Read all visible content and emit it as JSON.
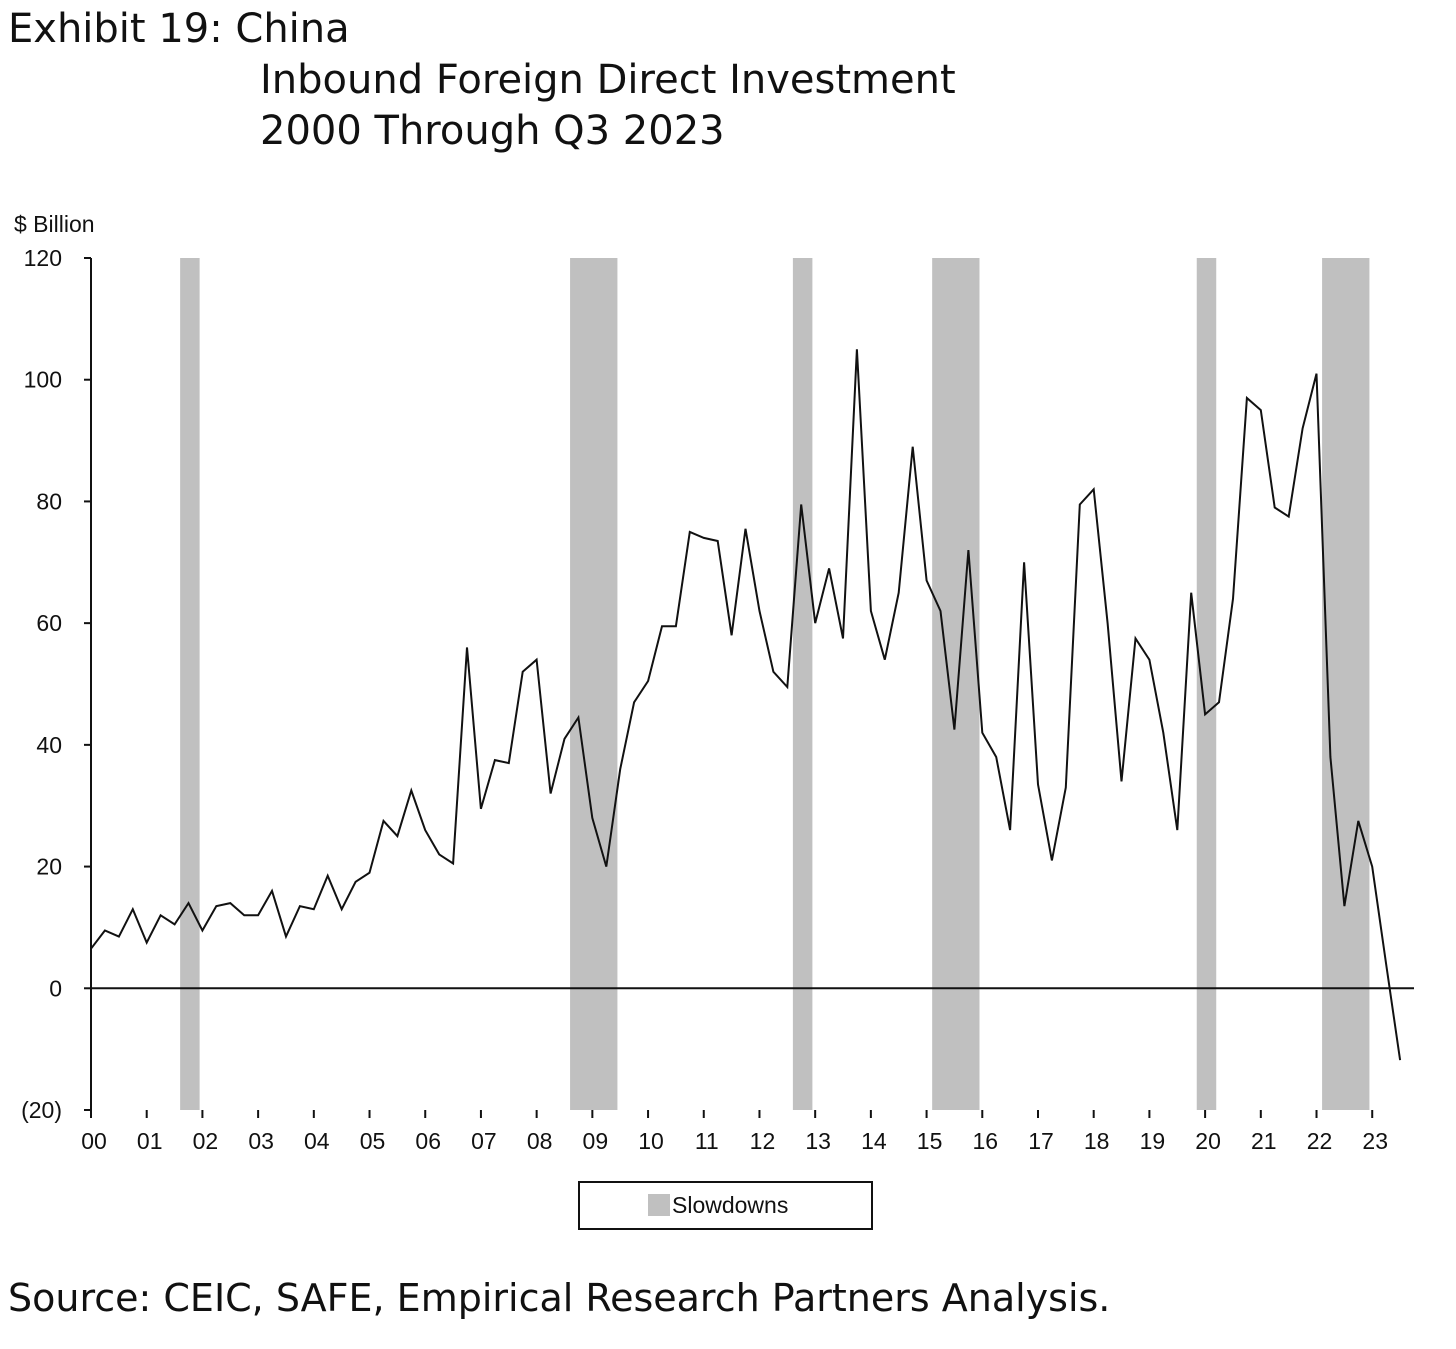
{
  "exhibit": "Exhibit 19: China",
  "subtitle_line1": "Inbound Foreign Direct Investment",
  "subtitle_line2": "2000 Through Q3 2023",
  "source": "Source: CEIC, SAFE, Empirical Research Partners Analysis.",
  "chart_data": {
    "type": "line",
    "ylabel": "$ Billion",
    "ylim": [
      -20,
      120
    ],
    "yticks": [
      {
        "value": 120,
        "label": "120"
      },
      {
        "value": 100,
        "label": "100"
      },
      {
        "value": 80,
        "label": "80"
      },
      {
        "value": 60,
        "label": "60"
      },
      {
        "value": 40,
        "label": "40"
      },
      {
        "value": 20,
        "label": "20"
      },
      {
        "value": 0,
        "label": "0"
      },
      {
        "value": -20,
        "label": "(20)"
      }
    ],
    "xlim": [
      2000.0,
      2023.75
    ],
    "xticks": [
      {
        "year": 2000,
        "label": "00"
      },
      {
        "year": 2001,
        "label": "01"
      },
      {
        "year": 2002,
        "label": "02"
      },
      {
        "year": 2003,
        "label": "03"
      },
      {
        "year": 2004,
        "label": "04"
      },
      {
        "year": 2005,
        "label": "05"
      },
      {
        "year": 2006,
        "label": "06"
      },
      {
        "year": 2007,
        "label": "07"
      },
      {
        "year": 2008,
        "label": "08"
      },
      {
        "year": 2009,
        "label": "09"
      },
      {
        "year": 2010,
        "label": "10"
      },
      {
        "year": 2011,
        "label": "11"
      },
      {
        "year": 2012,
        "label": "12"
      },
      {
        "year": 2013,
        "label": "13"
      },
      {
        "year": 2014,
        "label": "14"
      },
      {
        "year": 2015,
        "label": "15"
      },
      {
        "year": 2016,
        "label": "16"
      },
      {
        "year": 2017,
        "label": "17"
      },
      {
        "year": 2018,
        "label": "18"
      },
      {
        "year": 2019,
        "label": "19"
      },
      {
        "year": 2020,
        "label": "20"
      },
      {
        "year": 2021,
        "label": "21"
      },
      {
        "year": 2022,
        "label": "22"
      },
      {
        "year": 2023,
        "label": "23"
      }
    ],
    "legend": {
      "label": "Slowdowns",
      "placement": "bottom-center"
    },
    "slowdowns": [
      {
        "start": 2001.6,
        "end": 2001.95
      },
      {
        "start": 2008.6,
        "end": 2009.45
      },
      {
        "start": 2012.6,
        "end": 2012.95
      },
      {
        "start": 2015.1,
        "end": 2015.95
      },
      {
        "start": 2019.85,
        "end": 2020.2
      },
      {
        "start": 2022.1,
        "end": 2022.95
      }
    ],
    "series": [
      {
        "color": "#111111",
        "points": [
          {
            "x": 2000.0,
            "y": 6.5
          },
          {
            "x": 2000.25,
            "y": 9.5
          },
          {
            "x": 2000.5,
            "y": 8.5
          },
          {
            "x": 2000.75,
            "y": 13
          },
          {
            "x": 2001.0,
            "y": 7.5
          },
          {
            "x": 2001.25,
            "y": 12
          },
          {
            "x": 2001.5,
            "y": 10.5
          },
          {
            "x": 2001.75,
            "y": 14
          },
          {
            "x": 2002.0,
            "y": 9.5
          },
          {
            "x": 2002.25,
            "y": 13.5
          },
          {
            "x": 2002.5,
            "y": 14
          },
          {
            "x": 2002.75,
            "y": 12
          },
          {
            "x": 2003.0,
            "y": 12
          },
          {
            "x": 2003.25,
            "y": 16
          },
          {
            "x": 2003.5,
            "y": 8.5
          },
          {
            "x": 2003.75,
            "y": 13.5
          },
          {
            "x": 2004.0,
            "y": 13
          },
          {
            "x": 2004.25,
            "y": 18.5
          },
          {
            "x": 2004.5,
            "y": 13
          },
          {
            "x": 2004.75,
            "y": 17.5
          },
          {
            "x": 2005.0,
            "y": 19
          },
          {
            "x": 2005.25,
            "y": 27.5
          },
          {
            "x": 2005.5,
            "y": 25
          },
          {
            "x": 2005.75,
            "y": 32.5
          },
          {
            "x": 2006.0,
            "y": 26
          },
          {
            "x": 2006.25,
            "y": 22
          },
          {
            "x": 2006.5,
            "y": 20.5
          },
          {
            "x": 2006.75,
            "y": 56
          },
          {
            "x": 2007.0,
            "y": 29.5
          },
          {
            "x": 2007.25,
            "y": 37.5
          },
          {
            "x": 2007.5,
            "y": 37
          },
          {
            "x": 2007.75,
            "y": 52
          },
          {
            "x": 2008.0,
            "y": 54
          },
          {
            "x": 2008.25,
            "y": 32
          },
          {
            "x": 2008.5,
            "y": 41
          },
          {
            "x": 2008.75,
            "y": 44.5
          },
          {
            "x": 2009.0,
            "y": 28
          },
          {
            "x": 2009.25,
            "y": 20
          },
          {
            "x": 2009.5,
            "y": 36
          },
          {
            "x": 2009.75,
            "y": 47
          },
          {
            "x": 2010.0,
            "y": 50.5
          },
          {
            "x": 2010.25,
            "y": 59.5
          },
          {
            "x": 2010.5,
            "y": 59.5
          },
          {
            "x": 2010.75,
            "y": 75
          },
          {
            "x": 2011.0,
            "y": 74
          },
          {
            "x": 2011.25,
            "y": 73.5
          },
          {
            "x": 2011.5,
            "y": 58
          },
          {
            "x": 2011.75,
            "y": 75.5
          },
          {
            "x": 2012.0,
            "y": 62
          },
          {
            "x": 2012.25,
            "y": 52
          },
          {
            "x": 2012.5,
            "y": 49.5
          },
          {
            "x": 2012.75,
            "y": 79.5
          },
          {
            "x": 2013.0,
            "y": 60
          },
          {
            "x": 2013.25,
            "y": 69
          },
          {
            "x": 2013.5,
            "y": 57.5
          },
          {
            "x": 2013.75,
            "y": 105
          },
          {
            "x": 2014.0,
            "y": 62
          },
          {
            "x": 2014.25,
            "y": 54
          },
          {
            "x": 2014.5,
            "y": 65
          },
          {
            "x": 2014.75,
            "y": 89
          },
          {
            "x": 2015.0,
            "y": 67
          },
          {
            "x": 2015.25,
            "y": 62
          },
          {
            "x": 2015.5,
            "y": 42.5
          },
          {
            "x": 2015.75,
            "y": 72
          },
          {
            "x": 2016.0,
            "y": 42
          },
          {
            "x": 2016.25,
            "y": 38
          },
          {
            "x": 2016.5,
            "y": 26
          },
          {
            "x": 2016.75,
            "y": 70
          },
          {
            "x": 2017.0,
            "y": 33.5
          },
          {
            "x": 2017.25,
            "y": 21
          },
          {
            "x": 2017.5,
            "y": 33
          },
          {
            "x": 2017.75,
            "y": 79.5
          },
          {
            "x": 2018.0,
            "y": 82
          },
          {
            "x": 2018.25,
            "y": 60
          },
          {
            "x": 2018.5,
            "y": 34
          },
          {
            "x": 2018.75,
            "y": 57.5
          },
          {
            "x": 2019.0,
            "y": 54
          },
          {
            "x": 2019.25,
            "y": 42
          },
          {
            "x": 2019.5,
            "y": 26
          },
          {
            "x": 2019.75,
            "y": 65
          },
          {
            "x": 2020.0,
            "y": 45
          },
          {
            "x": 2020.25,
            "y": 47
          },
          {
            "x": 2020.5,
            "y": 64
          },
          {
            "x": 2020.75,
            "y": 97
          },
          {
            "x": 2021.0,
            "y": 95
          },
          {
            "x": 2021.25,
            "y": 79
          },
          {
            "x": 2021.5,
            "y": 77.5
          },
          {
            "x": 2021.75,
            "y": 92
          },
          {
            "x": 2022.0,
            "y": 101
          },
          {
            "x": 2022.25,
            "y": 38
          },
          {
            "x": 2022.5,
            "y": 13.5
          },
          {
            "x": 2022.75,
            "y": 27.5
          },
          {
            "x": 2023.0,
            "y": 20
          },
          {
            "x": 2023.25,
            "y": 4
          },
          {
            "x": 2023.5,
            "y": -11.8
          }
        ]
      }
    ]
  }
}
